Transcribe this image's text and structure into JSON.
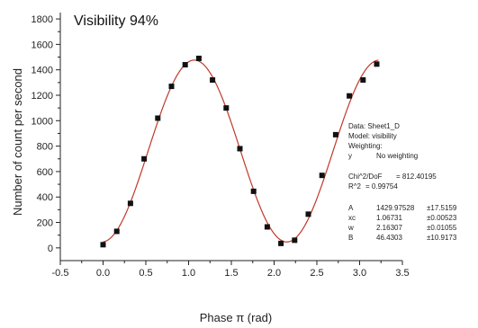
{
  "chart_data": {
    "type": "scatter",
    "annotation": "Visibility 94%",
    "xlabel": "Phase π (rad)",
    "ylabel": "Number of count per second",
    "xlim": [
      -0.5,
      3.5
    ],
    "ylim": [
      -100,
      1850
    ],
    "xticks": [
      -0.5,
      0.0,
      0.5,
      1.0,
      1.5,
      2.0,
      2.5,
      3.0,
      3.5
    ],
    "xtick_labels": [
      "-0.5",
      "0.0",
      "0.5",
      "1.0",
      "1.5",
      "2.0",
      "2.5",
      "3.0",
      "3.5"
    ],
    "yticks": [
      0,
      200,
      400,
      600,
      800,
      1000,
      1200,
      1400,
      1600,
      1800
    ],
    "ytick_labels": [
      "0",
      "200",
      "400",
      "600",
      "800",
      "1000",
      "1200",
      "1400",
      "1600",
      "1800"
    ],
    "grid": false,
    "marker_color": "#111111",
    "fit_color": "#c0392b",
    "series": [
      {
        "x": [
          0.0,
          0.16,
          0.32,
          0.48,
          0.64,
          0.8,
          0.96,
          1.12,
          1.28,
          1.44,
          1.6,
          1.76,
          1.92,
          2.08,
          2.24,
          2.4,
          2.56,
          2.72,
          2.88,
          3.04,
          3.2
        ],
        "y": [
          25,
          130,
          350,
          700,
          1020,
          1270,
          1440,
          1490,
          1320,
          1100,
          780,
          445,
          165,
          35,
          60,
          265,
          570,
          890,
          1195,
          1320,
          1445
        ]
      }
    ],
    "fit": {
      "model": "visibility",
      "A": 1429.97528,
      "xc": 1.06731,
      "w": 2.16307,
      "B": 46.4303,
      "x_range": [
        0.0,
        3.22
      ]
    },
    "fit_report": {
      "data_line": "Data: Sheet1_D",
      "model_line": "Model: visibility",
      "weighting_line": "Weighting:",
      "weighting_key": "y",
      "weighting_value": "No weighting",
      "chi_label": "Chi^2/DoF",
      "chi_value": "= 812.40195",
      "r2_label": "R^2",
      "r2_value": "=  0.99754",
      "params": [
        {
          "name": "A",
          "value": "1429.97528",
          "error": "±17.5159"
        },
        {
          "name": "xc",
          "value": "1.06731",
          "error": "±0.00523"
        },
        {
          "name": "w",
          "value": "2.16307",
          "error": "±0.01055"
        },
        {
          "name": "B",
          "value": "46.4303",
          "error": "±10.9173"
        }
      ]
    }
  }
}
